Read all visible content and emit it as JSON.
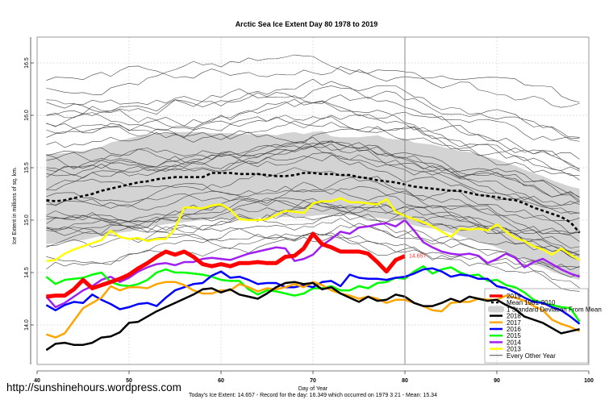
{
  "chart_data": {
    "type": "line",
    "title": "Arctic Sea Ice Extent Day 80 1978 to 2019",
    "xlabel": "Day of Year",
    "ylabel": "Ice Extent in millions of sq. km.",
    "subtitle": "Today's Ice Extent: 14.657  - Record for the day: 16.349 which occurred on 1979 3 21  - Mean: 15.34",
    "watermark": "http://sunshinehours.wordpress.com",
    "xlim": [
      40,
      100
    ],
    "ylim": [
      13.62,
      16.75
    ],
    "xticks": [
      40,
      50,
      60,
      70,
      80,
      90,
      100
    ],
    "yticks": [
      14.0,
      14.5,
      15.0,
      15.5,
      16.0,
      16.5
    ],
    "ytick_labels": [
      "14.0",
      "14.5",
      "15.0",
      "15.5",
      "16.0",
      "16.5"
    ],
    "grid": true,
    "vertical_marker_day": 80,
    "end_label": "14.657",
    "legend_position": "bottom-right",
    "legend": [
      {
        "label": "2019",
        "color": "#ff0000",
        "style": "thick"
      },
      {
        "label": "Mean 1981-2010",
        "color": "#000000",
        "style": "dashed"
      },
      {
        "label": "1 Standard Deviation From Mean",
        "color": "#d3d3d3",
        "style": "band"
      },
      {
        "label": "2018",
        "color": "#000000",
        "style": "line"
      },
      {
        "label": "2017",
        "color": "#ffa500",
        "style": "line"
      },
      {
        "label": "2016",
        "color": "#0000ff",
        "style": "line"
      },
      {
        "label": "2015",
        "color": "#00ff00",
        "style": "line"
      },
      {
        "label": "2014",
        "color": "#a020f0",
        "style": "line"
      },
      {
        "label": "2013",
        "color": "#ffff00",
        "style": "line"
      },
      {
        "label": "Every Other Year",
        "color": "#000000",
        "style": "thin"
      }
    ],
    "x": [
      41,
      42,
      43,
      44,
      45,
      46,
      47,
      48,
      49,
      50,
      51,
      52,
      53,
      54,
      55,
      56,
      57,
      58,
      59,
      60,
      61,
      62,
      63,
      64,
      65,
      66,
      67,
      68,
      69,
      70,
      71,
      72,
      73,
      74,
      75,
      76,
      77,
      78,
      79,
      80,
      81,
      82,
      83,
      84,
      85,
      86,
      87,
      88,
      89,
      90,
      91,
      92,
      93,
      94,
      95,
      96,
      97,
      98,
      99
    ],
    "mean": [
      15.19,
      15.18,
      15.19,
      15.21,
      15.23,
      15.25,
      15.28,
      15.3,
      15.32,
      15.34,
      15.36,
      15.37,
      15.39,
      15.4,
      15.41,
      15.41,
      15.41,
      15.41,
      15.45,
      15.45,
      15.45,
      15.44,
      15.44,
      15.44,
      15.43,
      15.42,
      15.42,
      15.43,
      15.45,
      15.45,
      15.44,
      15.44,
      15.43,
      15.43,
      15.41,
      15.4,
      15.38,
      15.37,
      15.36,
      15.34,
      15.32,
      15.31,
      15.3,
      15.29,
      15.28,
      15.28,
      15.26,
      15.24,
      15.23,
      15.22,
      15.2,
      15.19,
      15.16,
      15.12,
      15.09,
      15.06,
      15.03,
      14.98,
      14.88
    ],
    "sd_upper": [
      15.63,
      15.63,
      15.64,
      15.65,
      15.66,
      15.68,
      15.7,
      15.74,
      15.76,
      15.78,
      15.8,
      15.81,
      15.83,
      15.83,
      15.84,
      15.84,
      15.84,
      15.84,
      15.83,
      15.83,
      15.83,
      15.82,
      15.82,
      15.82,
      15.82,
      15.81,
      15.83,
      15.84,
      15.82,
      15.84,
      15.85,
      15.8,
      15.79,
      15.79,
      15.79,
      15.8,
      15.81,
      15.78,
      15.77,
      15.78,
      15.74,
      15.73,
      15.72,
      15.7,
      15.68,
      15.66,
      15.65,
      15.63,
      15.6,
      15.58,
      15.55,
      15.52,
      15.48,
      15.45,
      15.42,
      15.38,
      15.35,
      15.32,
      15.3
    ],
    "sd_lower": [
      14.77,
      14.78,
      14.79,
      14.8,
      14.81,
      14.83,
      14.85,
      14.87,
      14.88,
      14.89,
      14.91,
      14.93,
      14.95,
      14.96,
      14.97,
      14.98,
      14.99,
      15.0,
      15.01,
      15.01,
      15.01,
      15.01,
      15.01,
      15.02,
      15.02,
      15.03,
      15.03,
      15.03,
      15.03,
      15.04,
      15.05,
      15.05,
      15.05,
      15.05,
      15.04,
      15.03,
      15.02,
      15.01,
      15.0,
      14.98,
      14.95,
      14.93,
      14.92,
      14.9,
      14.88,
      14.85,
      14.82,
      14.8,
      14.77,
      14.74,
      14.7,
      14.66,
      14.62,
      14.58,
      14.55,
      14.51,
      14.48,
      14.45,
      14.43
    ],
    "series": [
      {
        "name": "2019",
        "color": "#ff0000",
        "values": [
          14.27,
          14.28,
          14.28,
          14.34,
          14.43,
          14.35,
          14.38,
          14.41,
          14.44,
          14.48,
          14.54,
          14.59,
          14.65,
          14.7,
          14.67,
          14.7,
          14.65,
          14.58,
          14.56,
          14.58,
          14.56,
          14.59,
          14.59,
          14.6,
          14.59,
          14.59,
          14.65,
          14.66,
          14.73,
          14.87,
          14.77,
          14.74,
          14.7,
          14.7,
          14.7,
          14.68,
          14.6,
          14.51,
          14.62,
          14.657
        ]
      },
      {
        "name": "2018",
        "color": "#000000",
        "values": [
          13.76,
          13.82,
          13.83,
          13.81,
          13.81,
          13.83,
          13.88,
          13.89,
          13.93,
          14.02,
          14.03,
          14.08,
          14.13,
          14.17,
          14.21,
          14.25,
          14.29,
          14.34,
          14.35,
          14.31,
          14.34,
          14.29,
          14.27,
          14.25,
          14.3,
          14.36,
          14.4,
          14.41,
          14.39,
          14.4,
          14.34,
          14.36,
          14.3,
          14.26,
          14.22,
          14.27,
          14.23,
          14.24,
          14.29,
          14.27,
          14.21,
          14.18,
          14.18,
          14.21,
          14.25,
          14.22,
          14.27,
          14.25,
          14.23,
          14.24,
          14.19,
          14.15,
          14.08,
          14.05,
          14.02,
          13.97,
          13.92,
          13.94,
          13.96
        ]
      },
      {
        "name": "2017",
        "color": "#ffa500",
        "values": [
          13.91,
          13.88,
          13.92,
          14.04,
          14.16,
          14.21,
          14.26,
          14.37,
          14.33,
          14.36,
          14.36,
          14.35,
          14.39,
          14.41,
          14.41,
          14.38,
          14.33,
          14.3,
          14.3,
          14.33,
          14.33,
          14.39,
          14.36,
          14.32,
          14.35,
          14.34,
          14.36,
          14.39,
          14.36,
          14.41,
          14.38,
          14.33,
          14.3,
          14.28,
          14.25,
          14.27,
          14.25,
          14.21,
          14.24,
          14.24,
          14.21,
          14.18,
          14.14,
          14.13,
          14.21,
          14.22,
          14.22,
          14.25,
          14.24,
          14.24,
          14.28,
          14.26,
          14.23,
          14.18,
          14.14,
          14.05,
          14.01,
          13.98,
          13.94
        ]
      },
      {
        "name": "2016",
        "color": "#0000ff",
        "values": [
          14.19,
          14.14,
          14.19,
          14.22,
          14.21,
          14.29,
          14.24,
          14.2,
          14.15,
          14.17,
          14.2,
          14.21,
          14.18,
          14.26,
          14.33,
          14.36,
          14.39,
          14.4,
          14.47,
          14.51,
          14.45,
          14.46,
          14.43,
          14.39,
          14.4,
          14.4,
          14.36,
          14.36,
          14.38,
          14.36,
          14.41,
          14.42,
          14.37,
          14.48,
          14.45,
          14.44,
          14.44,
          14.43,
          14.45,
          14.46,
          14.49,
          14.53,
          14.54,
          14.51,
          14.46,
          14.48,
          14.47,
          14.44,
          14.44,
          14.37,
          14.35,
          14.31,
          14.26,
          14.22,
          14.21,
          14.17,
          14.14,
          14.08,
          14.01
        ]
      },
      {
        "name": "2015",
        "color": "#00ff00",
        "values": [
          14.46,
          14.39,
          14.43,
          14.44,
          14.45,
          14.48,
          14.5,
          14.41,
          14.38,
          14.37,
          14.39,
          14.43,
          14.5,
          14.53,
          14.5,
          14.5,
          14.49,
          14.48,
          14.46,
          14.43,
          14.42,
          14.42,
          14.34,
          14.29,
          14.33,
          14.32,
          14.3,
          14.28,
          14.3,
          14.35,
          14.35,
          14.37,
          14.33,
          14.33,
          14.37,
          14.35,
          14.4,
          14.41,
          14.45,
          14.44,
          14.51,
          14.56,
          14.49,
          14.53,
          14.55,
          14.5,
          14.47,
          14.48,
          14.42,
          14.43,
          14.38,
          14.36,
          14.31,
          14.24,
          14.21,
          14.19,
          14.17,
          14.16,
          14.03
        ]
      },
      {
        "name": "2014",
        "color": "#a020f0",
        "values": [
          14.27,
          14.17,
          14.21,
          14.27,
          14.33,
          14.37,
          14.43,
          14.46,
          14.41,
          14.45,
          14.51,
          14.55,
          14.58,
          14.59,
          14.57,
          14.6,
          14.6,
          14.63,
          14.64,
          14.63,
          14.62,
          14.65,
          14.68,
          14.7,
          14.72,
          14.74,
          14.73,
          14.61,
          14.63,
          14.67,
          14.76,
          14.82,
          14.89,
          14.87,
          14.93,
          14.94,
          14.96,
          14.97,
          14.94,
          15.0,
          14.9,
          14.79,
          14.74,
          14.7,
          14.68,
          14.67,
          14.68,
          14.66,
          14.59,
          14.63,
          14.68,
          14.64,
          14.55,
          14.6,
          14.63,
          14.58,
          14.53,
          14.49,
          14.46
        ]
      },
      {
        "name": "2013",
        "color": "#ffff00",
        "values": [
          14.61,
          14.62,
          14.68,
          14.72,
          14.75,
          14.78,
          14.81,
          14.9,
          14.84,
          14.82,
          14.83,
          14.8,
          14.82,
          14.82,
          14.92,
          15.12,
          15.12,
          15.11,
          15.14,
          15.15,
          15.1,
          15.01,
          15.0,
          15.0,
          15.01,
          15.05,
          15.09,
          15.08,
          15.07,
          15.16,
          15.18,
          15.18,
          15.21,
          15.17,
          15.17,
          15.16,
          15.15,
          15.2,
          15.08,
          15.04,
          15.01,
          14.98,
          14.94,
          14.89,
          14.84,
          14.92,
          14.91,
          14.92,
          14.9,
          14.96,
          14.89,
          14.83,
          14.8,
          14.75,
          14.72,
          14.67,
          14.73,
          14.67,
          14.62
        ]
      }
    ],
    "other_years_count": 35,
    "other_years_range": [
      14.2,
      16.65
    ]
  }
}
